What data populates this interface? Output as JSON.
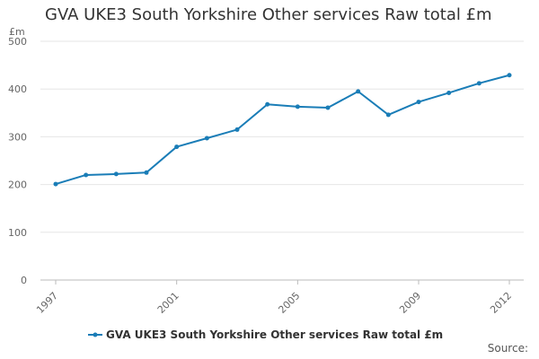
{
  "chart_data": {
    "type": "line",
    "title": "GVA UKE3 South Yorkshire Other services Raw total £m",
    "unit": "£m",
    "x": [
      1997,
      1998,
      1999,
      2000,
      2001,
      2002,
      2003,
      2004,
      2005,
      2006,
      2007,
      2008,
      2009,
      2010,
      2011,
      2012
    ],
    "x_tick_labels": [
      "1997",
      "2001",
      "2005",
      "2009",
      "2012"
    ],
    "series": [
      {
        "name": "GVA UKE3 South Yorkshire Other services Raw total £m",
        "values": [
          201,
          220,
          222,
          225,
          279,
          297,
          315,
          368,
          363,
          361,
          395,
          346,
          373,
          392,
          412,
          429
        ],
        "color": "#1a7db7"
      }
    ],
    "y_ticks": [
      0,
      100,
      200,
      300,
      400,
      500
    ],
    "ylim": [
      0,
      500
    ],
    "grid": true,
    "legend": "bottom-center",
    "source": "Source:"
  }
}
